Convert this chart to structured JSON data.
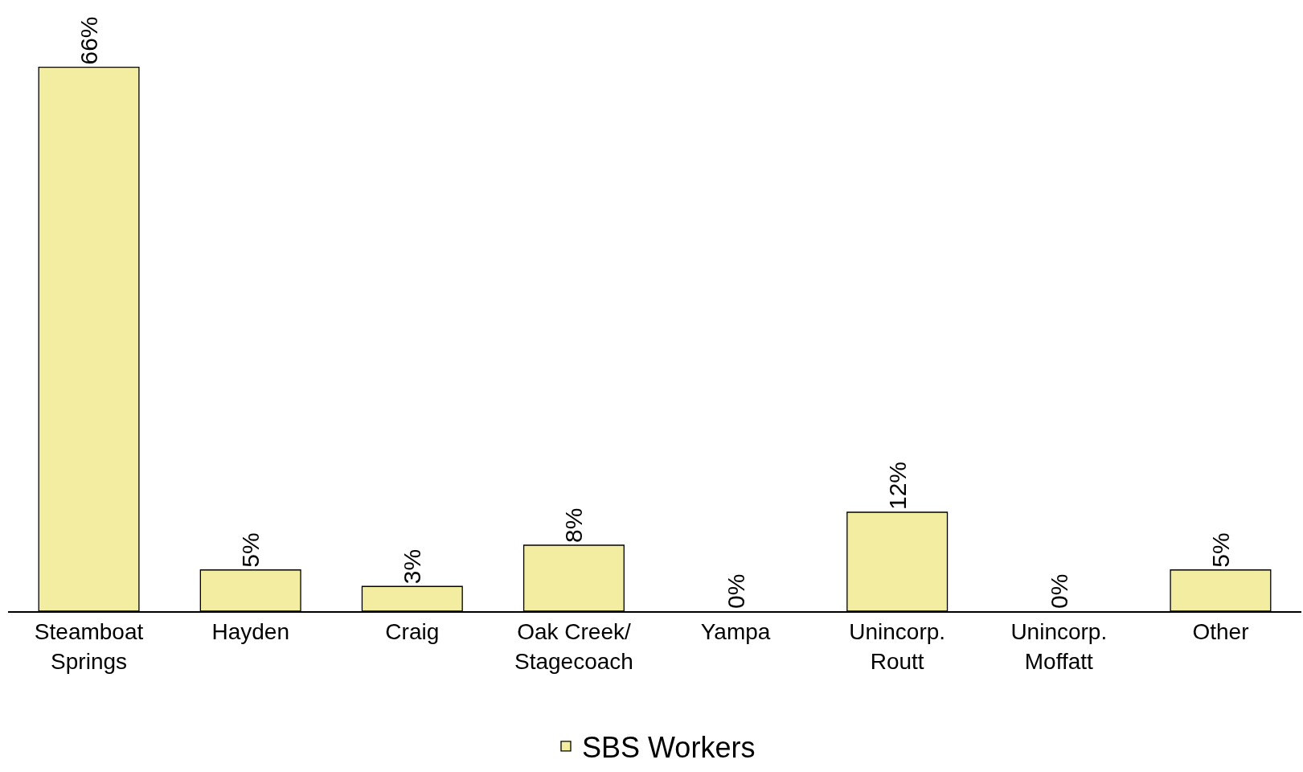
{
  "chart_data": {
    "type": "bar",
    "categories": [
      "Steamboat\nSprings",
      "Hayden",
      "Craig",
      "Oak Creek/\nStagecoach",
      "Yampa",
      "Unincorp.\nRoutt",
      "Unincorp.\nMoffatt",
      "Other"
    ],
    "series": [
      {
        "name": "SBS Workers",
        "color": "#f2eda0",
        "values": [
          66,
          5,
          3,
          8,
          0,
          12,
          0,
          5
        ],
        "value_labels": [
          "66%",
          "5%",
          "3%",
          "8%",
          "0%",
          "12%",
          "0%",
          "5%"
        ]
      }
    ],
    "legend": "bottom"
  }
}
